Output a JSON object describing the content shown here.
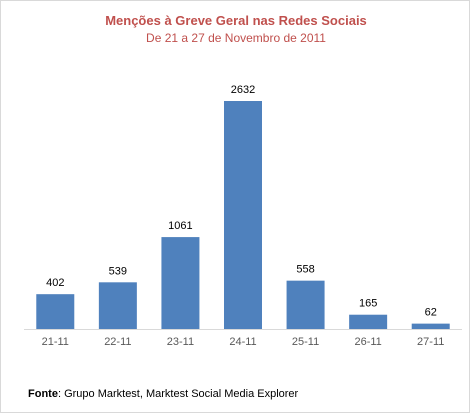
{
  "chart_data": {
    "type": "bar",
    "title": "Menções à Greve Geral nas Redes Sociais",
    "subtitle": "De 21 a 27 de Novembro de 2011",
    "categories": [
      "21-11",
      "22-11",
      "23-11",
      "24-11",
      "25-11",
      "26-11",
      "27-11"
    ],
    "values": [
      402,
      539,
      1061,
      2632,
      558,
      165,
      62
    ],
    "ylim": [
      0,
      2632
    ],
    "grid": false,
    "legend": "none",
    "xlabel": "",
    "ylabel": ""
  },
  "colors": {
    "bar": "#4f81bd",
    "title": "#c0504d",
    "axis": "#d9d9d9",
    "tick_label": "#595959"
  },
  "source": {
    "label": "Fonte",
    "text": ": Grupo Marktest, Marktest Social Media Explorer"
  }
}
